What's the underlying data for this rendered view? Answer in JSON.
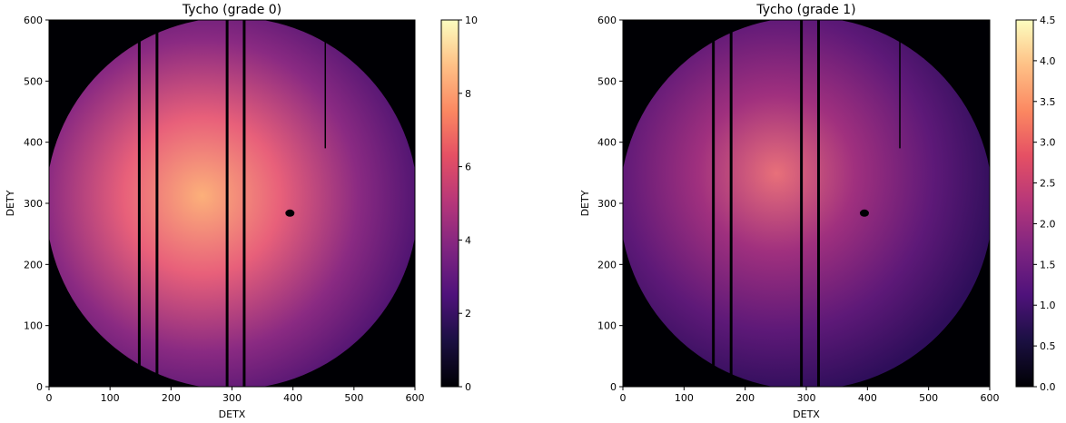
{
  "chart_data": [
    {
      "type": "heatmap",
      "title": "Tycho (grade 0)",
      "xlabel": "DETX",
      "ylabel": "DETY",
      "xlim": [
        0,
        600
      ],
      "ylim": [
        0,
        600
      ],
      "xticks": [
        "0",
        "100",
        "200",
        "300",
        "400",
        "500",
        "600"
      ],
      "yticks": [
        "0",
        "100",
        "200",
        "300",
        "400",
        "500",
        "600"
      ],
      "colormap": "magma",
      "colorbar": {
        "min": 0,
        "max": 10,
        "ticks": [
          "0",
          "2",
          "4",
          "6",
          "8",
          "10"
        ]
      },
      "field": {
        "center": [
          300,
          300
        ],
        "radius": 305
      },
      "dark_columns": [
        148,
        177,
        292,
        320,
        453
      ],
      "dark_column_y": [
        [
          0,
          600
        ],
        [
          0,
          600
        ],
        [
          0,
          600
        ],
        [
          0,
          600
        ],
        [
          390,
          600
        ]
      ],
      "blob": {
        "x": 395,
        "y": 284
      }
    },
    {
      "type": "heatmap",
      "title": "Tycho (grade 1)",
      "xlabel": "DETX",
      "ylabel": "DETY",
      "xlim": [
        0,
        600
      ],
      "ylim": [
        0,
        600
      ],
      "xticks": [
        "0",
        "100",
        "200",
        "300",
        "400",
        "500",
        "600"
      ],
      "yticks": [
        "0",
        "100",
        "200",
        "300",
        "400",
        "500",
        "600"
      ],
      "colormap": "magma",
      "colorbar": {
        "min": 0,
        "max": 4.5,
        "ticks": [
          "0.0",
          "0.5",
          "1.0",
          "1.5",
          "2.0",
          "2.5",
          "3.0",
          "3.5",
          "4.0",
          "4.5"
        ]
      },
      "field": {
        "center": [
          300,
          300
        ],
        "radius": 305
      },
      "dark_columns": [
        148,
        177,
        292,
        320,
        453
      ],
      "dark_column_y": [
        [
          0,
          600
        ],
        [
          0,
          600
        ],
        [
          0,
          600
        ],
        [
          0,
          600
        ],
        [
          390,
          600
        ]
      ],
      "blob": {
        "x": 395,
        "y": 284
      }
    }
  ]
}
